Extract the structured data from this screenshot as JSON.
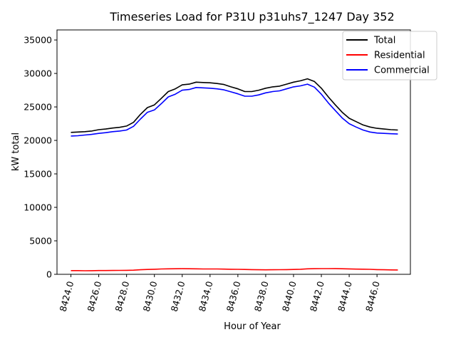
{
  "chart_data": {
    "type": "line",
    "title": "Timeseries Load for P31U p31uhs7_1247  Day 352",
    "xlabel": "Hour of Year",
    "ylabel": "kW total",
    "xlim": [
      8423.0,
      8448.4
    ],
    "ylim": [
      0,
      36500
    ],
    "xticks": [
      8424,
      8426,
      8428,
      8430,
      8432,
      8434,
      8436,
      8438,
      8440,
      8442,
      8444,
      8446
    ],
    "xtick_labels": [
      "8424.0",
      "8426.0",
      "8428.0",
      "8430.0",
      "8432.0",
      "8434.0",
      "8436.0",
      "8438.0",
      "8440.0",
      "8442.0",
      "8444.0",
      "8446.0"
    ],
    "yticks": [
      0,
      5000,
      10000,
      15000,
      20000,
      25000,
      30000,
      35000
    ],
    "ytick_labels": [
      "0",
      "5000",
      "10000",
      "15000",
      "20000",
      "25000",
      "30000",
      "35000"
    ],
    "legend_position": "top-right",
    "grid": false,
    "x": [
      8424,
      8424.5,
      8425,
      8425.5,
      8426,
      8426.5,
      8427,
      8427.5,
      8428,
      8428.5,
      8429,
      8429.5,
      8430,
      8430.5,
      8431,
      8431.5,
      8432,
      8432.5,
      8433,
      8433.5,
      8434,
      8434.5,
      8435,
      8435.5,
      8436,
      8436.5,
      8437,
      8437.5,
      8438,
      8438.5,
      8439,
      8439.5,
      8440,
      8440.5,
      8441,
      8441.5,
      8442,
      8442.5,
      8443,
      8443.5,
      8444,
      8444.5,
      8445,
      8445.5,
      8446,
      8446.5,
      8447,
      8447.5
    ],
    "series": [
      {
        "name": "Total",
        "color": "#000000",
        "values": [
          21200,
          21250,
          21300,
          21400,
          21600,
          21700,
          21850,
          21950,
          22150,
          22700,
          23900,
          24900,
          25300,
          26300,
          27300,
          27700,
          28300,
          28400,
          28700,
          28650,
          28600,
          28500,
          28350,
          28000,
          27700,
          27300,
          27300,
          27500,
          27800,
          28000,
          28100,
          28400,
          28700,
          28900,
          29200,
          28800,
          27800,
          26500,
          25300,
          24200,
          23300,
          22800,
          22300,
          22000,
          21800,
          21700,
          21600,
          21550
        ]
      },
      {
        "name": "Residential",
        "color": "#ff0000",
        "values": [
          550,
          550,
          530,
          540,
          560,
          560,
          570,
          580,
          600,
          620,
          680,
          720,
          760,
          800,
          820,
          830,
          840,
          830,
          820,
          800,
          800,
          800,
          780,
          760,
          740,
          720,
          700,
          680,
          670,
          680,
          690,
          700,
          720,
          760,
          820,
          840,
          850,
          850,
          860,
          830,
          810,
          780,
          770,
          750,
          700,
          680,
          660,
          650
        ]
      },
      {
        "name": "Commercial",
        "color": "#0000ff",
        "values": [
          20650,
          20700,
          20800,
          20900,
          21050,
          21150,
          21300,
          21400,
          21550,
          22100,
          23200,
          24200,
          24550,
          25500,
          26500,
          26900,
          27500,
          27600,
          27900,
          27850,
          27800,
          27700,
          27550,
          27250,
          26950,
          26600,
          26600,
          26800,
          27100,
          27300,
          27400,
          27700,
          28000,
          28150,
          28400,
          27950,
          26900,
          25600,
          24450,
          23350,
          22500,
          22000,
          21550,
          21250,
          21100,
          21050,
          21000,
          20950
        ]
      }
    ]
  }
}
